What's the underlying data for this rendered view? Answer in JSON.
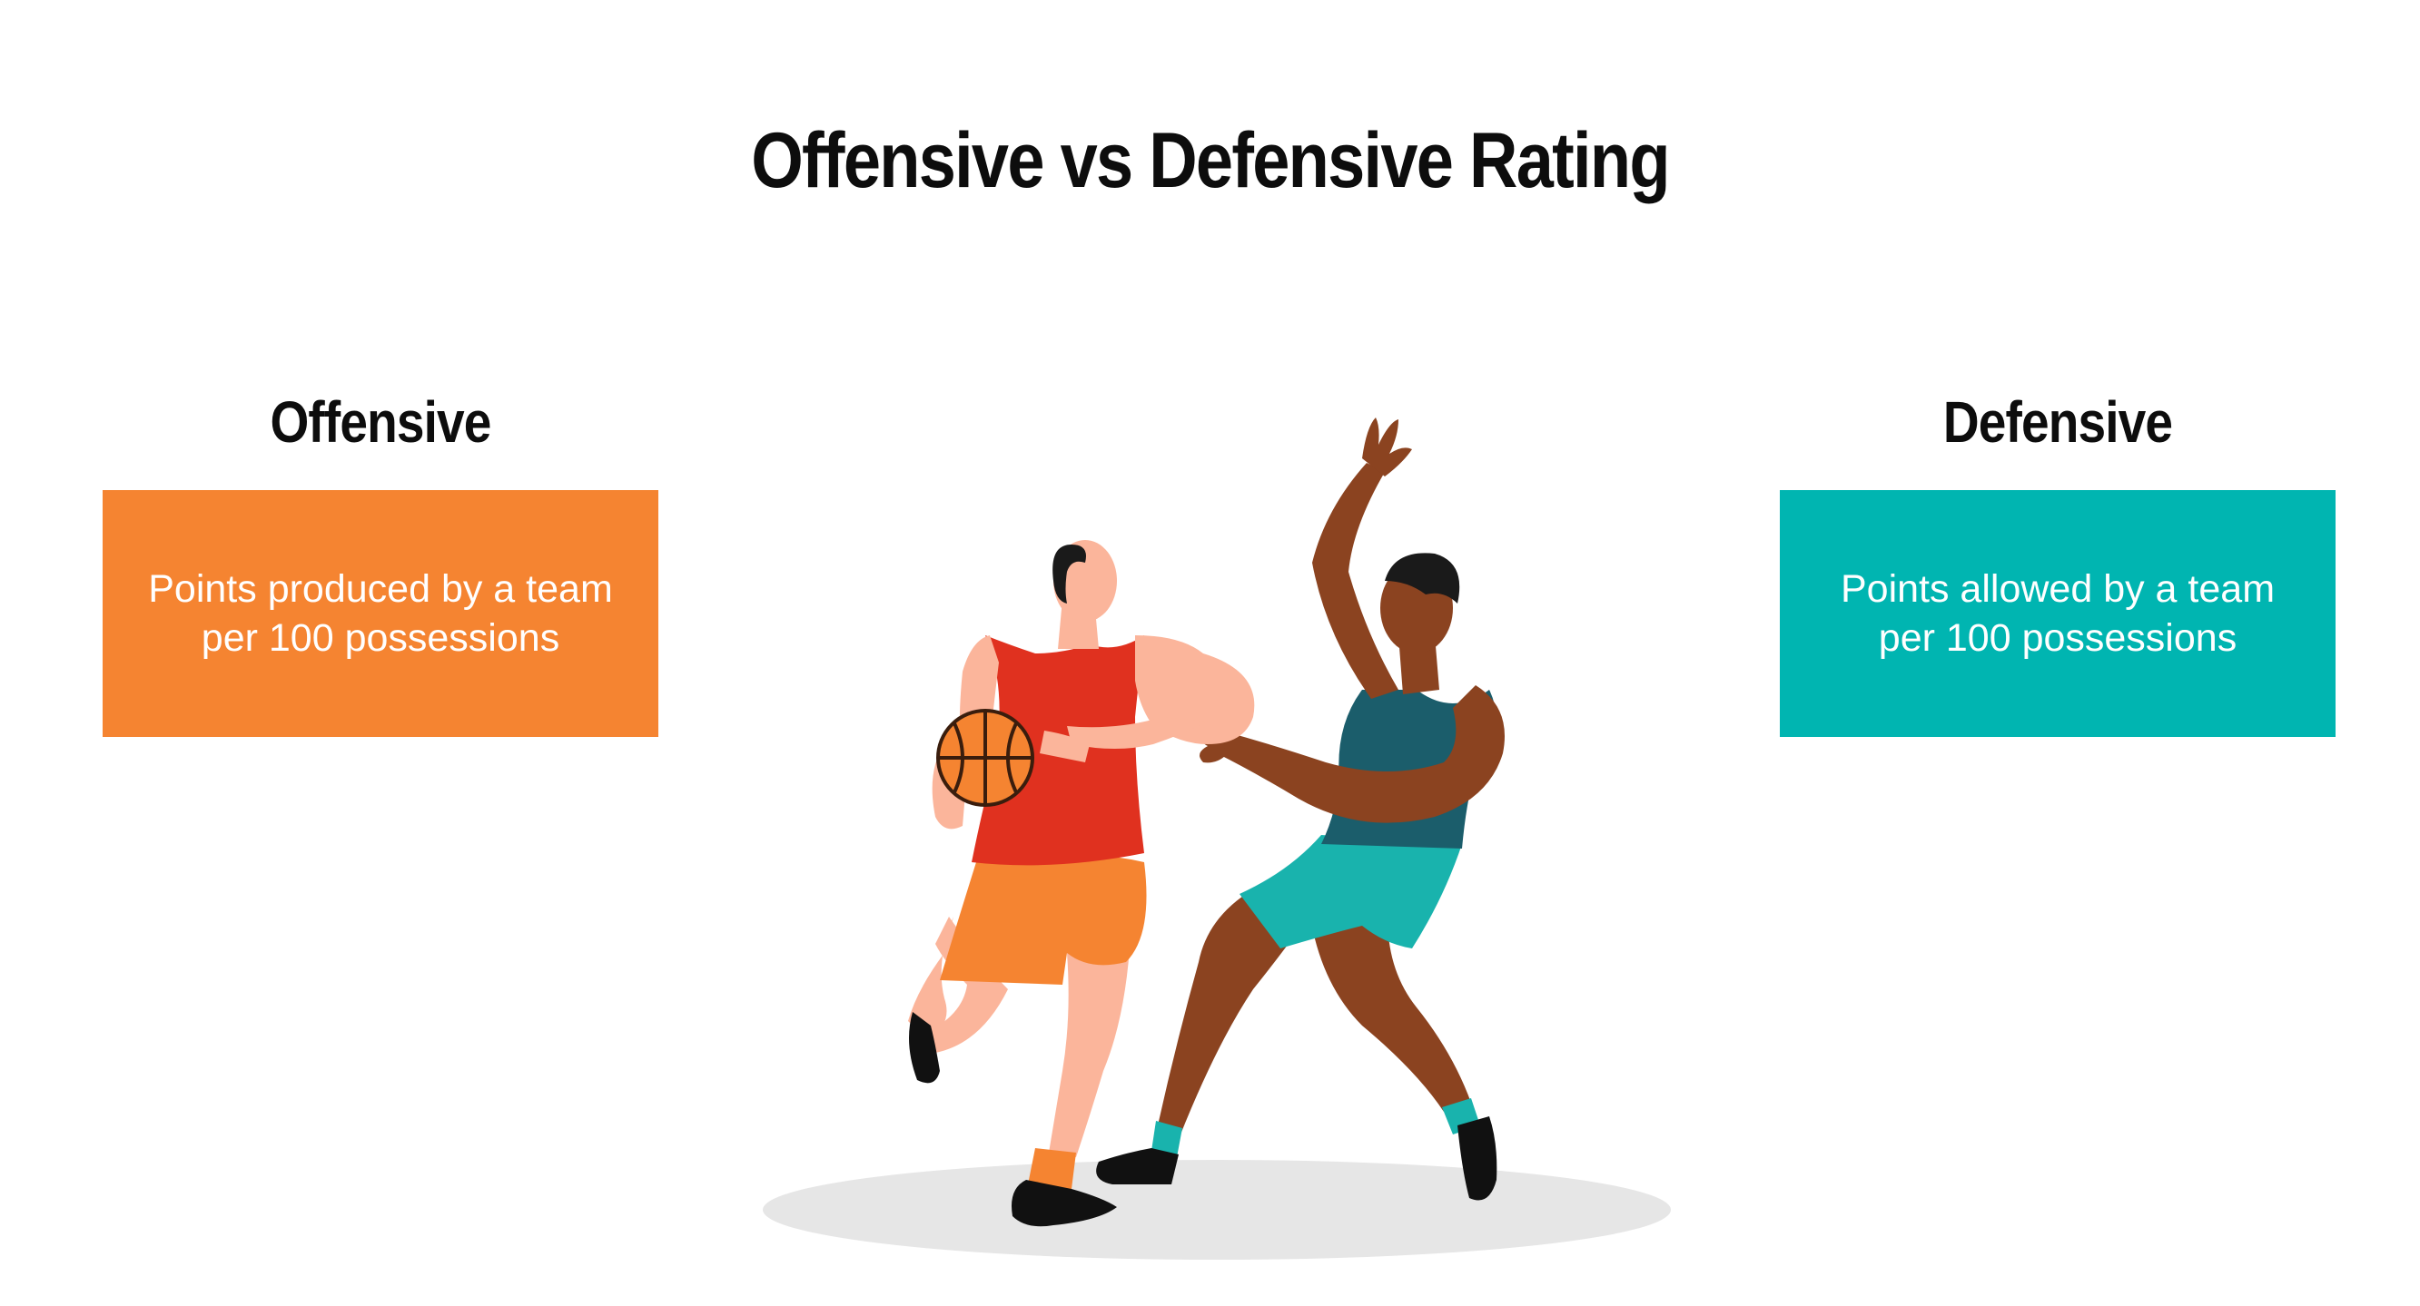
{
  "title": "Offensive vs Defensive Rating",
  "offensive": {
    "heading": "Offensive",
    "description": "Points produced by a team\nper 100 possessions",
    "color": "#f58431"
  },
  "defensive": {
    "heading": "Defensive",
    "description": "Points allowed by a team\nper 100 possessions",
    "color": "#00b5b1"
  },
  "illustration": {
    "icon": "basketball-players-illustration"
  }
}
